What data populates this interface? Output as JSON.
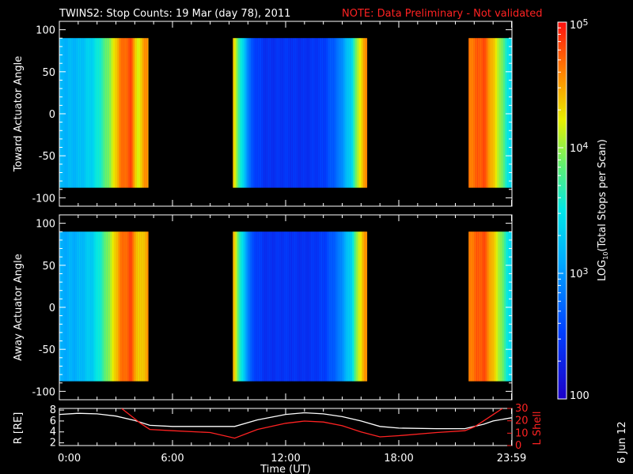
{
  "header": {
    "title": "TWINS2: Stop Counts: 19 Mar (day  78), 2011",
    "note": "NOTE: Data Preliminary - Not validated"
  },
  "stamp": "6 Jun 12",
  "colors": {
    "note": "#ff2222",
    "background": "#000000",
    "axes": "#ffffff"
  },
  "chart_data": [
    {
      "type": "heatmap",
      "name": "toward",
      "ylabel": "Toward Actuator Angle",
      "ylim": [
        -110,
        110
      ],
      "yticks": [
        100,
        50,
        0,
        -50,
        -100
      ],
      "ytick_labels": [
        "100",
        "50",
        "0",
        "-50",
        "-100"
      ],
      "angle_range": [
        -88,
        90
      ],
      "xlim_hours": [
        0,
        24
      ],
      "data_intervals_hours": [
        [
          0,
          4.7
        ],
        [
          9.2,
          16.3
        ],
        [
          21.7,
          23.98
        ]
      ],
      "value_scale": "log10",
      "approx_log_profile": [
        [
          0,
          3.15
        ],
        [
          1,
          3.2
        ],
        [
          1.8,
          3.4
        ],
        [
          2.3,
          3.7
        ],
        [
          2.8,
          4.1
        ],
        [
          3.2,
          4.6
        ],
        [
          3.8,
          4.8
        ],
        [
          4.2,
          4.1
        ],
        [
          4.5,
          4.6
        ],
        [
          4.7,
          4.5
        ],
        [
          9.2,
          4.4
        ],
        [
          9.6,
          3.6
        ],
        [
          10.2,
          2.6
        ],
        [
          11,
          2.4
        ],
        [
          12,
          2.45
        ],
        [
          13,
          2.4
        ],
        [
          14,
          2.5
        ],
        [
          14.8,
          2.8
        ],
        [
          15.5,
          3.4
        ],
        [
          15.9,
          4.2
        ],
        [
          16.3,
          4.6
        ],
        [
          21.7,
          4.6
        ],
        [
          22.5,
          4.8
        ],
        [
          23.2,
          4.2
        ],
        [
          23.98,
          3.3
        ]
      ]
    },
    {
      "type": "heatmap",
      "name": "away",
      "ylabel": "Away Actuator Angle",
      "ylim": [
        -110,
        110
      ],
      "yticks": [
        100,
        50,
        0,
        -50,
        -100
      ],
      "ytick_labels": [
        "100",
        "50",
        "0",
        "-50",
        "-100"
      ],
      "angle_range": [
        -88,
        90
      ],
      "xlim_hours": [
        0,
        24
      ],
      "data_intervals_hours": [
        [
          0,
          4.7
        ],
        [
          9.2,
          16.3
        ],
        [
          21.7,
          23.98
        ]
      ],
      "value_scale": "log10",
      "approx_log_profile": [
        [
          0,
          3.1
        ],
        [
          1,
          3.15
        ],
        [
          1.8,
          3.35
        ],
        [
          2.3,
          3.7
        ],
        [
          2.8,
          4.15
        ],
        [
          3.2,
          4.6
        ],
        [
          3.8,
          4.8
        ],
        [
          4.2,
          4.3
        ],
        [
          4.7,
          4.5
        ],
        [
          9.2,
          4.5
        ],
        [
          9.6,
          3.6
        ],
        [
          10.2,
          2.6
        ],
        [
          11,
          2.4
        ],
        [
          12,
          2.45
        ],
        [
          13,
          2.4
        ],
        [
          14,
          2.5
        ],
        [
          14.8,
          2.8
        ],
        [
          15.5,
          3.4
        ],
        [
          15.9,
          4.2
        ],
        [
          16.3,
          4.6
        ],
        [
          21.7,
          4.6
        ],
        [
          22.5,
          4.8
        ],
        [
          23.2,
          4.2
        ],
        [
          23.98,
          3.3
        ]
      ]
    },
    {
      "type": "line",
      "name": "orbit",
      "ylabel": "R [RE]",
      "ylabel_right": "L Shell",
      "xlabel": "Time (UT)",
      "xlim_hours": [
        0,
        24
      ],
      "xticks_hours": [
        0,
        6,
        12,
        18,
        23.98
      ],
      "xtick_labels": [
        "0:00",
        "6:00",
        "12:00",
        "18:00",
        "23:59"
      ],
      "ylim": [
        1.5,
        8.3
      ],
      "yticks": [
        2,
        4,
        6,
        8
      ],
      "ytick_labels": [
        "2",
        "4",
        "6",
        "8"
      ],
      "ylim_right": [
        0,
        30
      ],
      "yticks_right": [
        0,
        10,
        20,
        30
      ],
      "ytick_labels_right": [
        "0",
        "10",
        "20",
        "30"
      ],
      "series": [
        {
          "name": "R [RE]",
          "axis": "left",
          "color": "#ffffff",
          "x": [
            0,
            1,
            2,
            3,
            4,
            4.8,
            6,
            8,
            9.3,
            10.5,
            12,
            13,
            14,
            15,
            16,
            17,
            18,
            20,
            21.5,
            22.5,
            23,
            23.98
          ],
          "y": [
            7.2,
            7.4,
            7.3,
            6.9,
            6.1,
            5.2,
            5.0,
            5.0,
            5.0,
            6.2,
            7.2,
            7.5,
            7.3,
            6.8,
            6.0,
            5.0,
            4.7,
            4.6,
            4.6,
            5.4,
            6.0,
            6.6
          ]
        },
        {
          "name": "L Shell",
          "axis": "right",
          "color": "#ff2222",
          "x": [
            3.3,
            3.8,
            4.3,
            4.8,
            6,
            8,
            9.3,
            10.5,
            12,
            13,
            14,
            15,
            16,
            17,
            18,
            20,
            21.5,
            22,
            22.5,
            23,
            23.5
          ],
          "y": [
            30,
            24,
            18,
            13,
            12,
            10.5,
            6,
            13,
            18,
            19.8,
            19,
            16,
            11,
            7,
            8,
            10.5,
            12,
            15,
            20,
            25,
            30
          ]
        }
      ]
    }
  ],
  "colorbar": {
    "label": "LOG10(Total Stops per Scan)",
    "label_prefix": "LOG",
    "label_sub": "10",
    "label_rest": "(Total Stops per Scan)",
    "scale": "log",
    "range": [
      100,
      100000
    ],
    "ticks": [
      {
        "value": 100000,
        "base": "10",
        "exp": "5"
      },
      {
        "value": 10000,
        "base": "10",
        "exp": "4"
      },
      {
        "value": 1000,
        "base": "10",
        "exp": "3"
      },
      {
        "value": 100,
        "base": "100",
        "exp": ""
      }
    ]
  }
}
